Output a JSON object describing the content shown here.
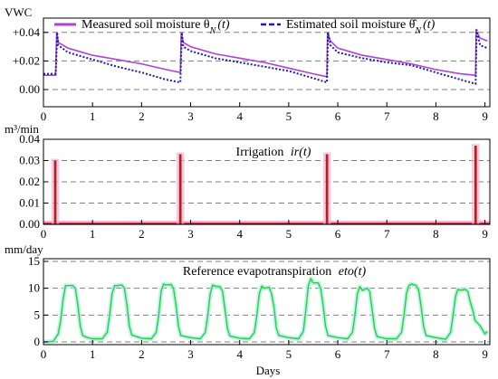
{
  "chart_data": [
    {
      "type": "line",
      "ylabel": "VWC",
      "xlim": [
        0,
        9.1
      ],
      "ylim": [
        -0.012,
        0.05
      ],
      "xticks": [
        0,
        1,
        2,
        3,
        4,
        5,
        6,
        7,
        8,
        9
      ],
      "yticks": [
        0.0,
        0.02,
        0.04
      ],
      "yticklabels": [
        "0.00",
        "+0.02",
        "+0.04"
      ],
      "grid": "dashed horizontal at ticks",
      "legend": "top",
      "series": [
        {
          "name": "Measured soil moisture θ",
          "name_sub": "N",
          "name_tail": "(t)",
          "color": "#b040d8",
          "style": "solid",
          "x": [
            0,
            0.25,
            0.27,
            0.3,
            0.5,
            1.0,
            1.5,
            2.0,
            2.5,
            2.79,
            2.81,
            2.85,
            3.0,
            3.5,
            4.0,
            4.5,
            5.0,
            5.5,
            5.78,
            5.79,
            5.85,
            6.0,
            6.5,
            7.0,
            7.5,
            8.0,
            8.5,
            8.81,
            8.82,
            8.9,
            9.05
          ],
          "values": [
            0.01,
            0.01,
            0.04,
            0.033,
            0.029,
            0.024,
            0.021,
            0.018,
            0.014,
            0.012,
            0.04,
            0.033,
            0.03,
            0.025,
            0.022,
            0.019,
            0.015,
            0.011,
            0.009,
            0.04,
            0.034,
            0.029,
            0.024,
            0.021,
            0.018,
            0.014,
            0.011,
            0.01,
            0.041,
            0.036,
            0.034
          ]
        },
        {
          "name": "Estimated soil moisture θ̂",
          "name_sub": "N",
          "name_tail": "(t)",
          "color": "#1c1cb0",
          "style": "dotted",
          "x": [
            0,
            0.25,
            0.28,
            0.3,
            0.5,
            1.0,
            1.5,
            2.0,
            2.5,
            2.79,
            2.82,
            2.85,
            3.0,
            3.5,
            4.0,
            4.5,
            5.0,
            5.5,
            5.78,
            5.8,
            5.85,
            6.0,
            6.5,
            7.0,
            7.5,
            8.0,
            8.5,
            8.81,
            8.83,
            8.9,
            9.05
          ],
          "values": [
            0.011,
            0.011,
            0.04,
            0.031,
            0.026,
            0.021,
            0.016,
            0.012,
            0.007,
            0.005,
            0.04,
            0.03,
            0.027,
            0.022,
            0.019,
            0.016,
            0.013,
            0.008,
            0.005,
            0.04,
            0.031,
            0.026,
            0.022,
            0.019,
            0.017,
            0.012,
            0.007,
            0.004,
            0.042,
            0.031,
            0.029
          ]
        }
      ]
    },
    {
      "type": "bar",
      "ylabel": "m³/min",
      "title": "Irrigation",
      "title_math": "ir(t)",
      "xlim": [
        0,
        9.1
      ],
      "ylim": [
        0,
        0.04
      ],
      "xticks": [
        0,
        1,
        2,
        3,
        4,
        5,
        6,
        7,
        8,
        9
      ],
      "yticks": [
        0.0,
        0.01,
        0.02,
        0.03,
        0.04
      ],
      "yticklabels": [
        "0.00",
        "0.01",
        "0.02",
        "0.03",
        "0.04"
      ],
      "grid": "dashed horizontal at ticks",
      "color": "#b0221a",
      "highlight": "#f4b4dc",
      "bar_width": 0.05,
      "x": [
        0.24,
        2.79,
        5.78,
        8.81
      ],
      "values": [
        0.03,
        0.033,
        0.033,
        0.037
      ]
    },
    {
      "type": "line",
      "ylabel": "mm/day",
      "title": "Reference evapotranspiration",
      "title_math": "eto(t)",
      "xlabel": "Days",
      "xlim": [
        0,
        9.1
      ],
      "ylim": [
        -0.5,
        15.5
      ],
      "xticks": [
        0,
        1,
        2,
        3,
        4,
        5,
        6,
        7,
        8,
        9
      ],
      "yticks": [
        0,
        5,
        10,
        15
      ],
      "yticklabels": [
        "0",
        "5",
        "10",
        "15"
      ],
      "grid": "dashed horizontal at ticks",
      "series": [
        {
          "color": "#33cc33",
          "halo": "#aaf0ee",
          "style": "solid",
          "x": [
            0,
            0.2,
            0.3,
            0.35,
            0.4,
            0.45,
            0.5,
            0.6,
            0.65,
            0.7,
            0.75,
            0.8,
            0.9,
            1.0,
            1.2,
            1.3,
            1.35,
            1.4,
            1.45,
            1.5,
            1.6,
            1.65,
            1.7,
            1.75,
            1.8,
            2.0,
            2.2,
            2.3,
            2.35,
            2.4,
            2.45,
            2.5,
            2.6,
            2.65,
            2.7,
            2.75,
            2.8,
            3.0,
            3.2,
            3.3,
            3.35,
            3.4,
            3.45,
            3.5,
            3.6,
            3.65,
            3.7,
            3.75,
            3.8,
            4.0,
            4.2,
            4.3,
            4.35,
            4.4,
            4.45,
            4.5,
            4.6,
            4.65,
            4.7,
            4.75,
            4.8,
            5.0,
            5.2,
            5.3,
            5.35,
            5.4,
            5.45,
            5.5,
            5.6,
            5.65,
            5.7,
            5.75,
            5.8,
            6.0,
            6.2,
            6.3,
            6.35,
            6.4,
            6.45,
            6.5,
            6.6,
            6.65,
            6.7,
            6.75,
            6.8,
            7.0,
            7.2,
            7.3,
            7.35,
            7.4,
            7.45,
            7.5,
            7.6,
            7.65,
            7.7,
            7.75,
            7.8,
            8.0,
            8.2,
            8.3,
            8.35,
            8.4,
            8.45,
            8.5,
            8.6,
            8.65,
            8.7,
            8.75,
            8.8,
            8.9,
            9.0,
            9.05
          ],
          "values": [
            0,
            0.1,
            1.5,
            4.0,
            8.0,
            10.5,
            10.5,
            10.5,
            10.0,
            7.0,
            3.0,
            1.2,
            0.8,
            0.6,
            0.6,
            1.8,
            5.0,
            9.0,
            10.5,
            10.5,
            10.6,
            10.0,
            7.0,
            3.0,
            1.3,
            0.7,
            0.6,
            1.8,
            5.0,
            9.5,
            10.8,
            10.6,
            10.7,
            10.0,
            7.0,
            3.0,
            1.2,
            0.8,
            0.6,
            1.8,
            5.0,
            9.0,
            10.6,
            10.4,
            10.3,
            9.5,
            6.0,
            2.5,
            1.1,
            0.7,
            0.6,
            1.8,
            5.0,
            9.0,
            10.4,
            10.0,
            10.2,
            9.0,
            6.5,
            2.5,
            1.2,
            0.8,
            0.6,
            2.0,
            6.0,
            10.5,
            11.8,
            11.0,
            11.0,
            10.0,
            7.0,
            3.0,
            1.2,
            0.8,
            0.6,
            1.8,
            5.0,
            9.0,
            10.3,
            9.6,
            10.0,
            9.4,
            6.0,
            2.5,
            1.0,
            0.6,
            0.6,
            1.8,
            5.0,
            9.0,
            10.5,
            10.8,
            10.5,
            9.6,
            6.5,
            2.8,
            1.2,
            0.8,
            0.5,
            1.8,
            5.0,
            8.5,
            9.8,
            9.6,
            9.8,
            9.4,
            7.5,
            6.0,
            4.0,
            3.0,
            1.5,
            2.0
          ]
        }
      ]
    }
  ]
}
